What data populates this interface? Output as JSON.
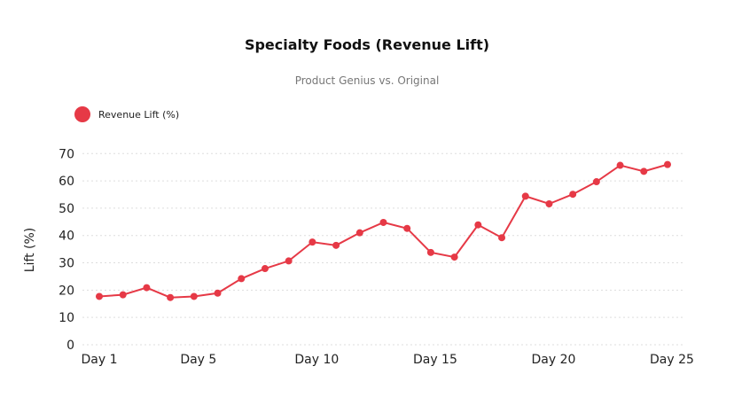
{
  "chart_data": {
    "type": "line",
    "title": "Specialty Foods (Revenue Lift)",
    "subtitle": "Product Genius vs. Original",
    "xlabel": "",
    "ylabel": "Lift (%)",
    "ylim": [
      0,
      70
    ],
    "yticks": [
      "0",
      "10",
      "20",
      "30",
      "40",
      "50",
      "60",
      "70"
    ],
    "grid": true,
    "legend_position": "top-left",
    "categories": [
      "Day 1",
      "Day 2",
      "Day 3",
      "Day 4",
      "Day 5",
      "Day 6",
      "Day 7",
      "Day 8",
      "Day 9",
      "Day 10",
      "Day 11",
      "Day 12",
      "Day 13",
      "Day 14",
      "Day 15",
      "Day 16",
      "Day 17",
      "Day 18",
      "Day 19",
      "Day 20",
      "Day 21",
      "Day 22",
      "Day 23",
      "Day 24",
      "Day 25"
    ],
    "xtick_labels": [
      "Day 1",
      "Day 5",
      "Day 10",
      "Day 15",
      "Day 20",
      "Day 25"
    ],
    "series": [
      {
        "name": "Revenue Lift (%)",
        "color": "#e63946",
        "values": [
          17.7,
          18.3,
          20.9,
          17.3,
          17.7,
          18.9,
          24.2,
          27.9,
          30.7,
          37.6,
          36.4,
          41.0,
          44.8,
          42.6,
          33.8,
          32.1,
          43.9,
          39.2,
          54.4,
          51.6,
          55.1,
          59.7,
          65.7,
          63.5,
          66.0
        ]
      }
    ]
  }
}
